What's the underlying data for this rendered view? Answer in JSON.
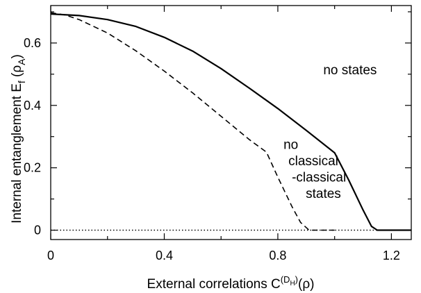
{
  "chart_data": {
    "type": "line",
    "xlabel": "External correlations  C",
    "xlabel_sup": "(D",
    "xlabel_sub": "H",
    "xlabel_sup_close": ")",
    "xlabel_tail": "(ρ)",
    "ylabel": "Internal entanglement  E",
    "ylabel_sub": "f",
    "ylabel_mid": " (ρ",
    "ylabel_sub2": "A",
    "ylabel_tail": ")",
    "xlim": [
      0,
      1.27
    ],
    "ylim": [
      -0.03,
      0.72
    ],
    "x_ticks": [
      0,
      0.4,
      0.8,
      1.2
    ],
    "x_tick_labels": [
      "0",
      "0.4",
      "0.8",
      "1.2"
    ],
    "x_minor_ticks": [
      0.2,
      0.6,
      1.0
    ],
    "y_ticks": [
      0,
      0.2,
      0.4,
      0.6
    ],
    "y_tick_labels": [
      "0",
      "0.2",
      "0.4",
      "0.6"
    ],
    "y_minor_ticks": [
      0.1,
      0.3,
      0.5,
      0.7
    ],
    "grid": false,
    "legend": "none",
    "series": [
      {
        "style": "solid",
        "x": [
          0,
          0.1,
          0.2,
          0.3,
          0.4,
          0.5,
          0.6,
          0.7,
          0.8,
          0.9,
          1.0,
          1.05,
          1.1,
          1.13,
          1.15,
          1.2,
          1.27
        ],
        "y": [
          0.693,
          0.688,
          0.675,
          0.653,
          0.618,
          0.574,
          0.518,
          0.455,
          0.39,
          0.32,
          0.248,
          0.16,
          0.065,
          0.012,
          0,
          0,
          0
        ]
      },
      {
        "style": "dashed",
        "x": [
          0,
          0.05,
          0.1,
          0.2,
          0.3,
          0.4,
          0.5,
          0.6,
          0.7,
          0.76,
          0.8,
          0.85,
          0.88,
          0.91,
          0.95,
          1.0
        ],
        "y": [
          0.697,
          0.69,
          0.675,
          0.632,
          0.575,
          0.51,
          0.44,
          0.365,
          0.29,
          0.25,
          0.17,
          0.075,
          0.025,
          0,
          0,
          0
        ]
      },
      {
        "style": "dotted",
        "x": [
          0,
          1.27
        ],
        "y": [
          0,
          0
        ]
      }
    ],
    "annotations": [
      {
        "id": "no-states",
        "lines": [
          "no states"
        ],
        "x": 0.96,
        "y": 0.5
      },
      {
        "id": "no-classical",
        "lines": [
          "no",
          "classical",
          "-classical",
          "states"
        ],
        "x": 0.82,
        "y": 0.26
      }
    ]
  }
}
